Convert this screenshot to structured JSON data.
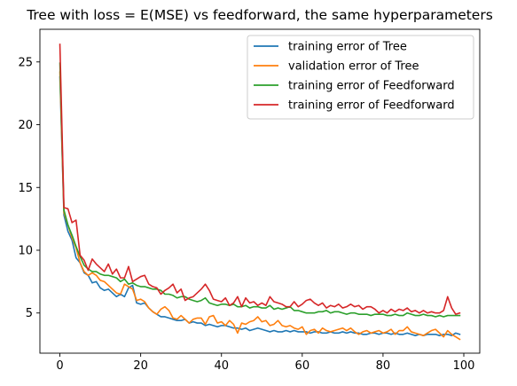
{
  "chart_data": {
    "type": "line",
    "title": "Tree with loss = E(MSE) vs feedforward, the same hyperparameters",
    "xlabel": "",
    "ylabel": "",
    "xlim": [
      -4.95,
      103.95
    ],
    "ylim": [
      1.8,
      27.6
    ],
    "xticks": [
      0,
      20,
      40,
      60,
      80,
      100
    ],
    "yticks": [
      5,
      10,
      15,
      20,
      25
    ],
    "grid": false,
    "legend_position": "top-right",
    "x": [
      0,
      1,
      2,
      3,
      4,
      5,
      6,
      7,
      8,
      9,
      10,
      11,
      12,
      13,
      14,
      15,
      16,
      17,
      18,
      19,
      20,
      21,
      22,
      23,
      24,
      25,
      26,
      27,
      28,
      29,
      30,
      31,
      32,
      33,
      34,
      35,
      36,
      37,
      38,
      39,
      40,
      41,
      42,
      43,
      44,
      45,
      46,
      47,
      48,
      49,
      50,
      51,
      52,
      53,
      54,
      55,
      56,
      57,
      58,
      59,
      60,
      61,
      62,
      63,
      64,
      65,
      66,
      67,
      68,
      69,
      70,
      71,
      72,
      73,
      74,
      75,
      76,
      77,
      78,
      79,
      80,
      81,
      82,
      83,
      84,
      85,
      86,
      87,
      88,
      89,
      90,
      91,
      92,
      93,
      94,
      95,
      96,
      97,
      98,
      99
    ],
    "series": [
      {
        "name": "training error of Tree",
        "color": "#1f77b4",
        "values": [
          23.8,
          12.8,
          11.5,
          10.8,
          9.4,
          9.0,
          8.2,
          8.0,
          7.4,
          7.5,
          7.0,
          6.8,
          6.9,
          6.6,
          6.3,
          6.5,
          6.3,
          7.0,
          7.2,
          5.8,
          5.7,
          5.8,
          5.4,
          5.1,
          4.9,
          4.7,
          4.7,
          4.6,
          4.5,
          4.4,
          4.4,
          4.5,
          4.2,
          4.3,
          4.2,
          4.2,
          4.0,
          4.1,
          4.0,
          3.9,
          4.0,
          4.0,
          3.9,
          3.8,
          3.8,
          3.7,
          3.8,
          3.6,
          3.7,
          3.8,
          3.7,
          3.6,
          3.5,
          3.6,
          3.5,
          3.5,
          3.6,
          3.5,
          3.6,
          3.5,
          3.5,
          3.5,
          3.4,
          3.5,
          3.5,
          3.4,
          3.4,
          3.5,
          3.4,
          3.4,
          3.5,
          3.4,
          3.5,
          3.4,
          3.4,
          3.3,
          3.3,
          3.4,
          3.4,
          3.3,
          3.4,
          3.4,
          3.3,
          3.4,
          3.3,
          3.3,
          3.4,
          3.3,
          3.2,
          3.3,
          3.2,
          3.3,
          3.3,
          3.3,
          3.2,
          3.3,
          3.3,
          3.2,
          3.4,
          3.3
        ]
      },
      {
        "name": "validation error of Tree",
        "color": "#ff7f0e",
        "values": [
          24.2,
          13.0,
          12.0,
          11.0,
          10.2,
          9.0,
          8.3,
          8.0,
          8.2,
          8.0,
          7.6,
          7.5,
          7.2,
          6.9,
          6.6,
          6.5,
          7.3,
          7.1,
          6.9,
          6.0,
          6.1,
          5.9,
          5.4,
          5.1,
          4.9,
          5.3,
          5.5,
          5.2,
          4.6,
          4.5,
          4.8,
          4.5,
          4.2,
          4.5,
          4.6,
          4.6,
          4.1,
          4.7,
          4.8,
          4.2,
          4.3,
          4.0,
          4.4,
          4.1,
          3.4,
          4.2,
          4.1,
          4.3,
          4.4,
          4.7,
          4.3,
          4.4,
          4.0,
          4.1,
          4.4,
          4.0,
          3.9,
          4.0,
          3.8,
          3.7,
          3.9,
          3.3,
          3.6,
          3.7,
          3.4,
          3.8,
          3.6,
          3.5,
          3.6,
          3.7,
          3.8,
          3.6,
          3.8,
          3.5,
          3.3,
          3.5,
          3.6,
          3.4,
          3.5,
          3.6,
          3.4,
          3.5,
          3.7,
          3.3,
          3.6,
          3.6,
          3.9,
          3.5,
          3.4,
          3.3,
          3.2,
          3.4,
          3.6,
          3.7,
          3.4,
          3.1,
          3.6,
          3.3,
          3.1,
          2.9
        ]
      },
      {
        "name": "training error of Feedforward",
        "color": "#2ca02c",
        "values": [
          24.9,
          13.2,
          12.0,
          11.2,
          10.3,
          9.5,
          8.8,
          8.5,
          8.3,
          8.3,
          8.1,
          8.0,
          8.0,
          7.9,
          7.8,
          7.5,
          7.7,
          7.3,
          7.4,
          7.2,
          7.1,
          7.1,
          7.0,
          6.9,
          6.9,
          6.8,
          6.5,
          6.5,
          6.4,
          6.2,
          6.3,
          6.3,
          6.1,
          6.0,
          5.9,
          6.0,
          6.2,
          5.8,
          5.7,
          5.6,
          5.7,
          5.7,
          5.6,
          5.7,
          5.5,
          5.5,
          5.6,
          5.4,
          5.5,
          5.5,
          5.4,
          5.4,
          5.6,
          5.3,
          5.4,
          5.3,
          5.4,
          5.5,
          5.2,
          5.2,
          5.1,
          5.0,
          5.0,
          5.0,
          5.1,
          5.1,
          5.2,
          5.0,
          5.1,
          5.1,
          5.0,
          4.9,
          5.0,
          5.0,
          4.9,
          4.9,
          4.9,
          4.8,
          4.9,
          4.9,
          4.9,
          4.8,
          4.8,
          4.9,
          4.8,
          4.8,
          5.0,
          4.9,
          4.8,
          4.8,
          4.9,
          4.8,
          4.8,
          4.7,
          4.8,
          4.7,
          4.8,
          4.8,
          4.8,
          4.8
        ]
      },
      {
        "name": "training error of Feedforward",
        "color": "#d62728",
        "values": [
          26.4,
          13.4,
          13.3,
          12.2,
          12.4,
          9.6,
          9.2,
          8.4,
          9.3,
          8.9,
          8.6,
          8.3,
          8.9,
          8.1,
          8.5,
          7.8,
          7.8,
          8.7,
          7.5,
          7.7,
          7.9,
          8.0,
          7.3,
          7.1,
          7.0,
          6.5,
          6.8,
          7.0,
          7.3,
          6.6,
          6.9,
          6.0,
          6.2,
          6.3,
          6.6,
          6.9,
          7.3,
          6.8,
          6.1,
          6.0,
          5.9,
          6.2,
          5.6,
          5.8,
          6.3,
          5.5,
          6.2,
          5.8,
          5.9,
          5.6,
          5.8,
          5.6,
          6.3,
          5.9,
          5.8,
          5.7,
          5.5,
          5.5,
          5.9,
          5.5,
          5.7,
          6.0,
          6.1,
          5.8,
          5.6,
          5.8,
          5.4,
          5.6,
          5.5,
          5.7,
          5.4,
          5.5,
          5.7,
          5.5,
          5.6,
          5.3,
          5.5,
          5.5,
          5.3,
          5.0,
          5.2,
          5.0,
          5.3,
          5.1,
          5.3,
          5.2,
          5.4,
          5.1,
          5.2,
          5.0,
          5.2,
          5.0,
          5.1,
          5.0,
          5.0,
          5.2,
          6.3,
          5.4,
          4.9,
          5.0
        ]
      }
    ]
  }
}
